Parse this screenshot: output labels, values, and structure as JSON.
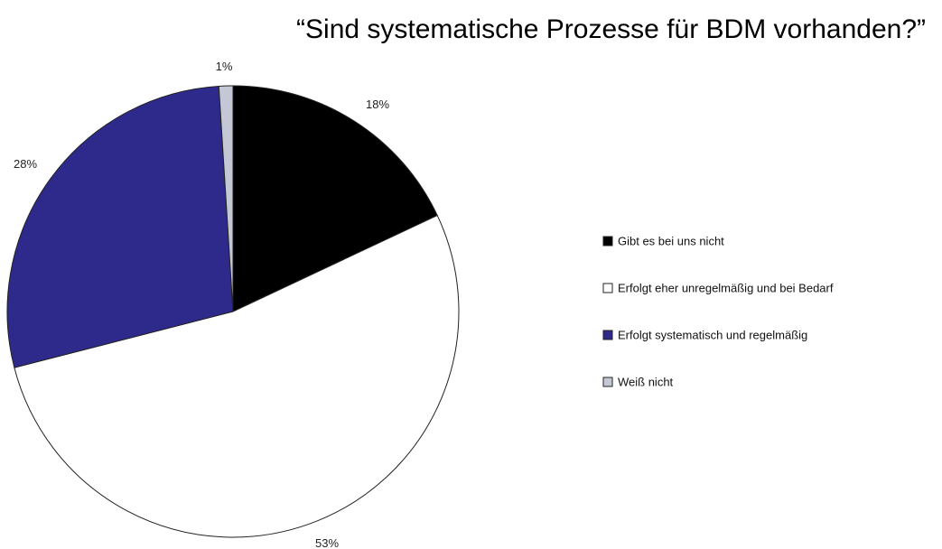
{
  "chart_data": {
    "type": "pie",
    "title": "“Sind systematische Prozesse für BDM vorhanden?”",
    "slices": [
      {
        "label": "Gibt es bei uns nicht",
        "value": 18,
        "value_label": "18%",
        "color": "#000000"
      },
      {
        "label": "Erfolgt eher unregelmäßig und bei Bedarf",
        "value": 53,
        "value_label": "53%",
        "color": "#ffffff"
      },
      {
        "label": "Erfolgt systematisch und regelmäßig",
        "value": 28,
        "value_label": "28%",
        "color": "#2e2a8c"
      },
      {
        "label": "Weiß nicht",
        "value": 1,
        "value_label": "1%",
        "color": "#c4c8d6"
      }
    ],
    "start_angle": "12 o'clock",
    "direction": "clockwise",
    "legend_position": "right"
  }
}
